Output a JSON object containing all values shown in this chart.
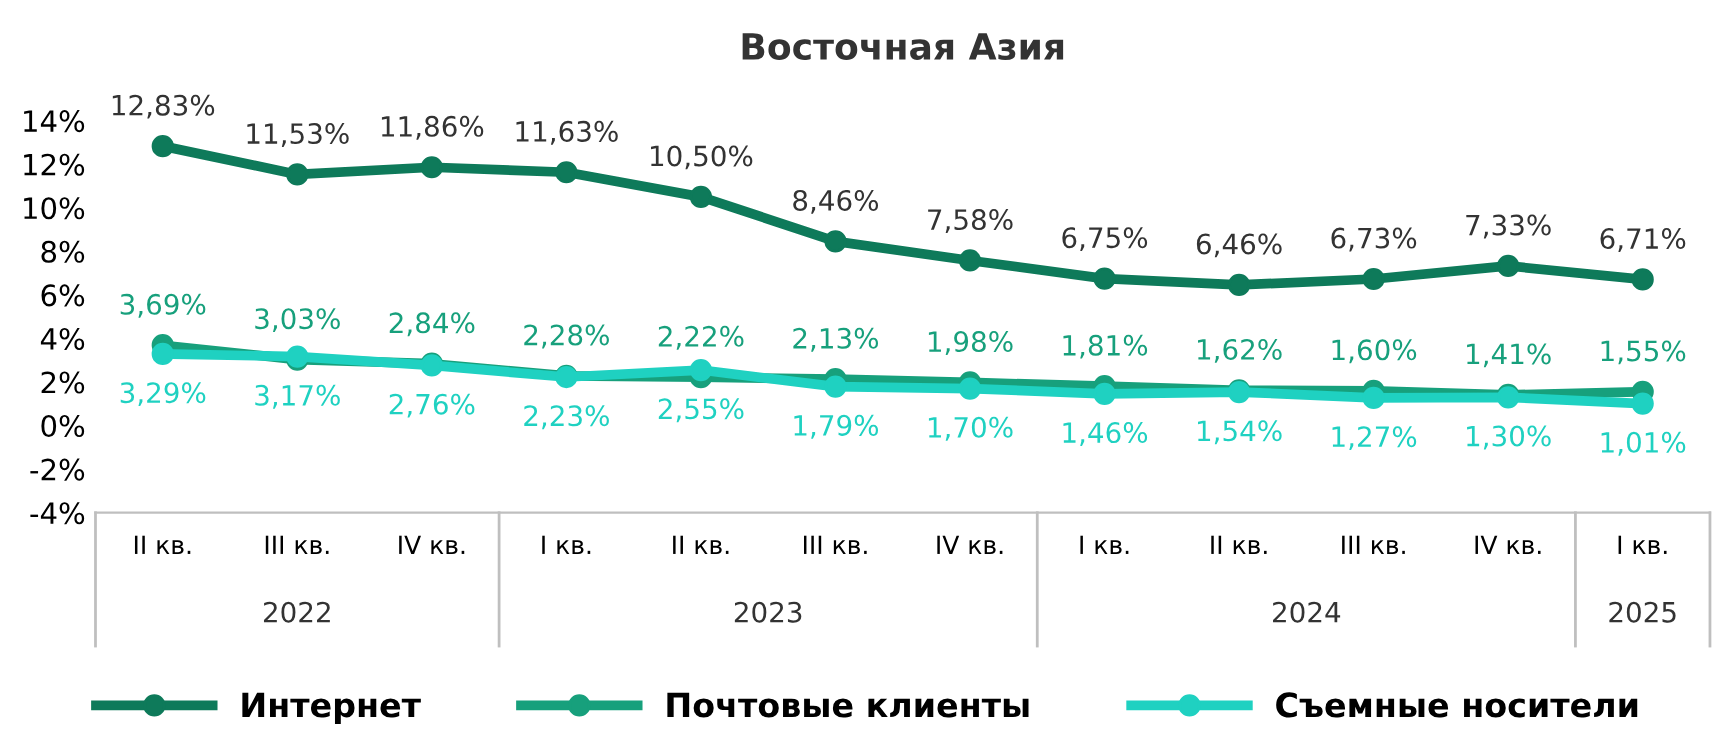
{
  "chart_data": {
    "type": "line",
    "title": "Восточная Азия",
    "categories": [
      "II кв.",
      "III кв.",
      "IV кв.",
      "I кв.",
      "II кв.",
      "III кв.",
      "IV кв.",
      "I кв.",
      "II кв.",
      "III кв.",
      "IV кв.",
      "I кв."
    ],
    "series": [
      {
        "name": "Интернет",
        "color": "#0e7a5a",
        "values": [
          12.83,
          11.53,
          11.86,
          11.63,
          10.5,
          8.46,
          7.58,
          6.75,
          6.46,
          6.73,
          7.33,
          6.71
        ],
        "value_labels": [
          "12,83%",
          "11,53%",
          "11,86%",
          "11,63%",
          "10,50%",
          "8,46%",
          "7,58%",
          "6,75%",
          "6,46%",
          "6,73%",
          "7,33%",
          "6,71%"
        ]
      },
      {
        "name": "Почтовые клиенты",
        "color": "#17a07c",
        "values": [
          3.69,
          3.03,
          2.84,
          2.28,
          2.22,
          2.13,
          1.98,
          1.81,
          1.62,
          1.6,
          1.41,
          1.55
        ],
        "value_labels": [
          "3,69%",
          "3,03%",
          "2,84%",
          "2,28%",
          "2,22%",
          "2,13%",
          "1,98%",
          "1,81%",
          "1,62%",
          "1,60%",
          "1,41%",
          "1,55%"
        ]
      },
      {
        "name": "Съемные носители",
        "color": "#1fd1c1",
        "values": [
          3.29,
          3.17,
          2.76,
          2.23,
          2.55,
          1.79,
          1.7,
          1.46,
          1.54,
          1.27,
          1.3,
          1.01
        ],
        "value_labels": [
          "3,29%",
          "3,17%",
          "2,76%",
          "2,23%",
          "2,55%",
          "1,79%",
          "1,70%",
          "1,46%",
          "1,54%",
          "1,27%",
          "1,30%",
          "1,01%"
        ]
      }
    ],
    "annotations": [
      "2022",
      "2023",
      "2024",
      "2025"
    ],
    "ylim": [
      -4,
      14
    ],
    "yticks": [
      {
        "value": -4,
        "label": "-4%"
      },
      {
        "value": -2,
        "label": "-2%"
      },
      {
        "value": 0,
        "label": "0%"
      },
      {
        "value": 2,
        "label": "2%"
      },
      {
        "value": 4,
        "label": "4%"
      },
      {
        "value": 6,
        "label": "6%"
      },
      {
        "value": 8,
        "label": "8%"
      },
      {
        "value": 10,
        "label": "10%"
      },
      {
        "value": 12,
        "label": "12%"
      },
      {
        "value": 14,
        "label": "14%"
      }
    ],
    "grid": false,
    "legend": "bottom",
    "marker": "circle",
    "line_style": "solid"
  }
}
